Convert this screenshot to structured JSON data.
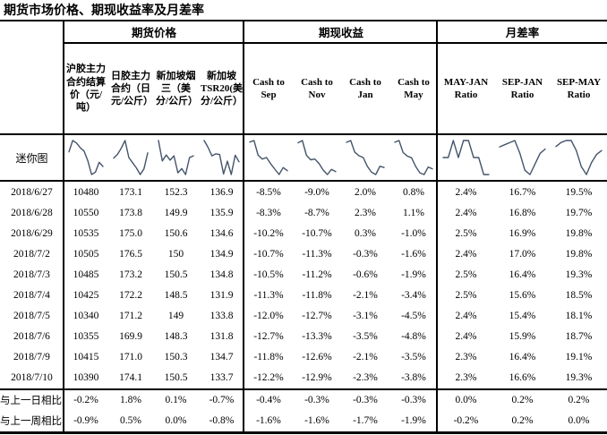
{
  "title": "期货市场价格、期现收益率及月差率",
  "colors": {
    "sparkline": "#44546A",
    "border": "#000000",
    "text": "#000000",
    "background": "#FFFFFF"
  },
  "table": {
    "corner_label": "",
    "groups": [
      {
        "label": "期货价格",
        "columns": [
          "沪胶主力合约结算价（元/吨）",
          "日胶主力合约（日元/公斤）",
          "新加坡烟三（美分/公斤）",
          "新加坡TSR20(美分/公斤）"
        ]
      },
      {
        "label": "期现收益",
        "columns": [
          "Cash to Sep",
          "Cash to Nov",
          "Cash to Jan",
          "Cash to May"
        ]
      },
      {
        "label": "月差率",
        "columns": [
          "MAY-JAN Ratio",
          "SEP-JAN Ratio",
          "SEP-MAY Ratio"
        ]
      }
    ],
    "sparkline_row_label": "迷你图",
    "date_rows": [
      {
        "date": "2018/6/27",
        "values": [
          "10480",
          "173.1",
          "152.3",
          "136.9",
          "-8.5%",
          "-9.0%",
          "2.0%",
          "0.8%",
          "2.4%",
          "16.7%",
          "19.5%"
        ]
      },
      {
        "date": "2018/6/28",
        "values": [
          "10550",
          "173.8",
          "149.9",
          "135.9",
          "-8.3%",
          "-8.7%",
          "2.3%",
          "1.1%",
          "2.4%",
          "16.8%",
          "19.7%"
        ]
      },
      {
        "date": "2018/6/29",
        "values": [
          "10535",
          "175.0",
          "150.6",
          "134.6",
          "-10.2%",
          "-10.7%",
          "0.3%",
          "-1.0%",
          "2.5%",
          "16.9%",
          "19.8%"
        ]
      },
      {
        "date": "2018/7/2",
        "values": [
          "10505",
          "176.5",
          "150",
          "134.9",
          "-10.7%",
          "-11.3%",
          "-0.3%",
          "-1.6%",
          "2.4%",
          "17.0%",
          "19.8%"
        ]
      },
      {
        "date": "2018/7/3",
        "values": [
          "10485",
          "173.2",
          "150.5",
          "134.8",
          "-10.5%",
          "-11.2%",
          "-0.6%",
          "-1.9%",
          "2.5%",
          "16.4%",
          "19.3%"
        ]
      },
      {
        "date": "2018/7/4",
        "values": [
          "10425",
          "172.2",
          "148.5",
          "131.9",
          "-11.3%",
          "-11.8%",
          "-2.1%",
          "-3.4%",
          "2.5%",
          "15.6%",
          "18.5%"
        ]
      },
      {
        "date": "2018/7/5",
        "values": [
          "10340",
          "171.2",
          "149",
          "133.8",
          "-12.0%",
          "-12.7%",
          "-3.1%",
          "-4.5%",
          "2.4%",
          "15.4%",
          "18.1%"
        ]
      },
      {
        "date": "2018/7/6",
        "values": [
          "10355",
          "169.9",
          "148.3",
          "131.8",
          "-12.7%",
          "-13.3%",
          "-3.5%",
          "-4.8%",
          "2.4%",
          "15.9%",
          "18.7%"
        ]
      },
      {
        "date": "2018/7/9",
        "values": [
          "10415",
          "171.0",
          "150.3",
          "134.7",
          "-11.8%",
          "-12.6%",
          "-2.1%",
          "-3.5%",
          "2.3%",
          "16.4%",
          "19.1%"
        ]
      },
      {
        "date": "2018/7/10",
        "values": [
          "10390",
          "174.1",
          "150.5",
          "133.7",
          "-12.2%",
          "-12.9%",
          "-2.3%",
          "-3.8%",
          "2.3%",
          "16.6%",
          "19.3%"
        ]
      }
    ],
    "summary_rows": [
      {
        "label": "与上一日相比",
        "values": [
          "-0.2%",
          "1.8%",
          "0.1%",
          "-0.7%",
          "-0.4%",
          "-0.3%",
          "-0.3%",
          "-0.3%",
          "0.0%",
          "0.2%",
          "0.2%"
        ]
      },
      {
        "label": "与上一周相比",
        "values": [
          "-0.9%",
          "0.5%",
          "0.0%",
          "-0.8%",
          "-1.6%",
          "-1.6%",
          "-1.7%",
          "-1.9%",
          "-0.2%",
          "0.2%",
          "0.0%"
        ]
      }
    ]
  },
  "chart_data": {
    "type": "line",
    "title": "迷你图 sparklines per column",
    "legend_position": "none",
    "grid": false,
    "x": [
      "2018/6/27",
      "2018/6/28",
      "2018/6/29",
      "2018/7/2",
      "2018/7/3",
      "2018/7/4",
      "2018/7/5",
      "2018/7/6",
      "2018/7/9",
      "2018/7/10"
    ],
    "series": [
      {
        "name": "沪胶主力合约结算价（元/吨）",
        "values": [
          10480,
          10550,
          10535,
          10505,
          10485,
          10425,
          10340,
          10355,
          10415,
          10390
        ]
      },
      {
        "name": "日胶主力合约（日元/公斤）",
        "values": [
          173.1,
          173.8,
          175.0,
          176.5,
          173.2,
          172.2,
          171.2,
          169.9,
          171.0,
          174.1
        ]
      },
      {
        "name": "新加坡烟三（美分/公斤）",
        "values": [
          152.3,
          149.9,
          150.6,
          150.0,
          150.5,
          148.5,
          149.0,
          148.3,
          150.3,
          150.5
        ]
      },
      {
        "name": "新加坡TSR20(美分/公斤）",
        "values": [
          136.9,
          135.9,
          134.6,
          134.9,
          134.8,
          131.9,
          133.8,
          131.8,
          134.7,
          133.7
        ]
      },
      {
        "name": "Cash to Sep",
        "values": [
          -8.5,
          -8.3,
          -10.2,
          -10.7,
          -10.5,
          -11.3,
          -12.0,
          -12.7,
          -11.8,
          -12.2
        ]
      },
      {
        "name": "Cash to Nov",
        "values": [
          -9.0,
          -8.7,
          -10.7,
          -11.3,
          -11.2,
          -11.8,
          -12.7,
          -13.3,
          -12.6,
          -12.9
        ]
      },
      {
        "name": "Cash to Jan",
        "values": [
          2.0,
          2.3,
          0.3,
          -0.3,
          -0.6,
          -2.1,
          -3.1,
          -3.5,
          -2.1,
          -2.3
        ]
      },
      {
        "name": "Cash to May",
        "values": [
          0.8,
          1.1,
          -1.0,
          -1.6,
          -1.9,
          -3.4,
          -4.5,
          -4.8,
          -3.5,
          -3.8
        ]
      },
      {
        "name": "MAY-JAN Ratio",
        "values": [
          2.4,
          2.4,
          2.5,
          2.4,
          2.5,
          2.5,
          2.4,
          2.4,
          2.3,
          2.3
        ]
      },
      {
        "name": "SEP-JAN Ratio",
        "values": [
          16.7,
          16.8,
          16.9,
          17.0,
          16.4,
          15.6,
          15.4,
          15.9,
          16.4,
          16.6
        ]
      },
      {
        "name": "SEP-MAY Ratio",
        "values": [
          19.5,
          19.7,
          19.8,
          19.8,
          19.3,
          18.5,
          18.1,
          18.7,
          19.1,
          19.3
        ]
      }
    ]
  }
}
